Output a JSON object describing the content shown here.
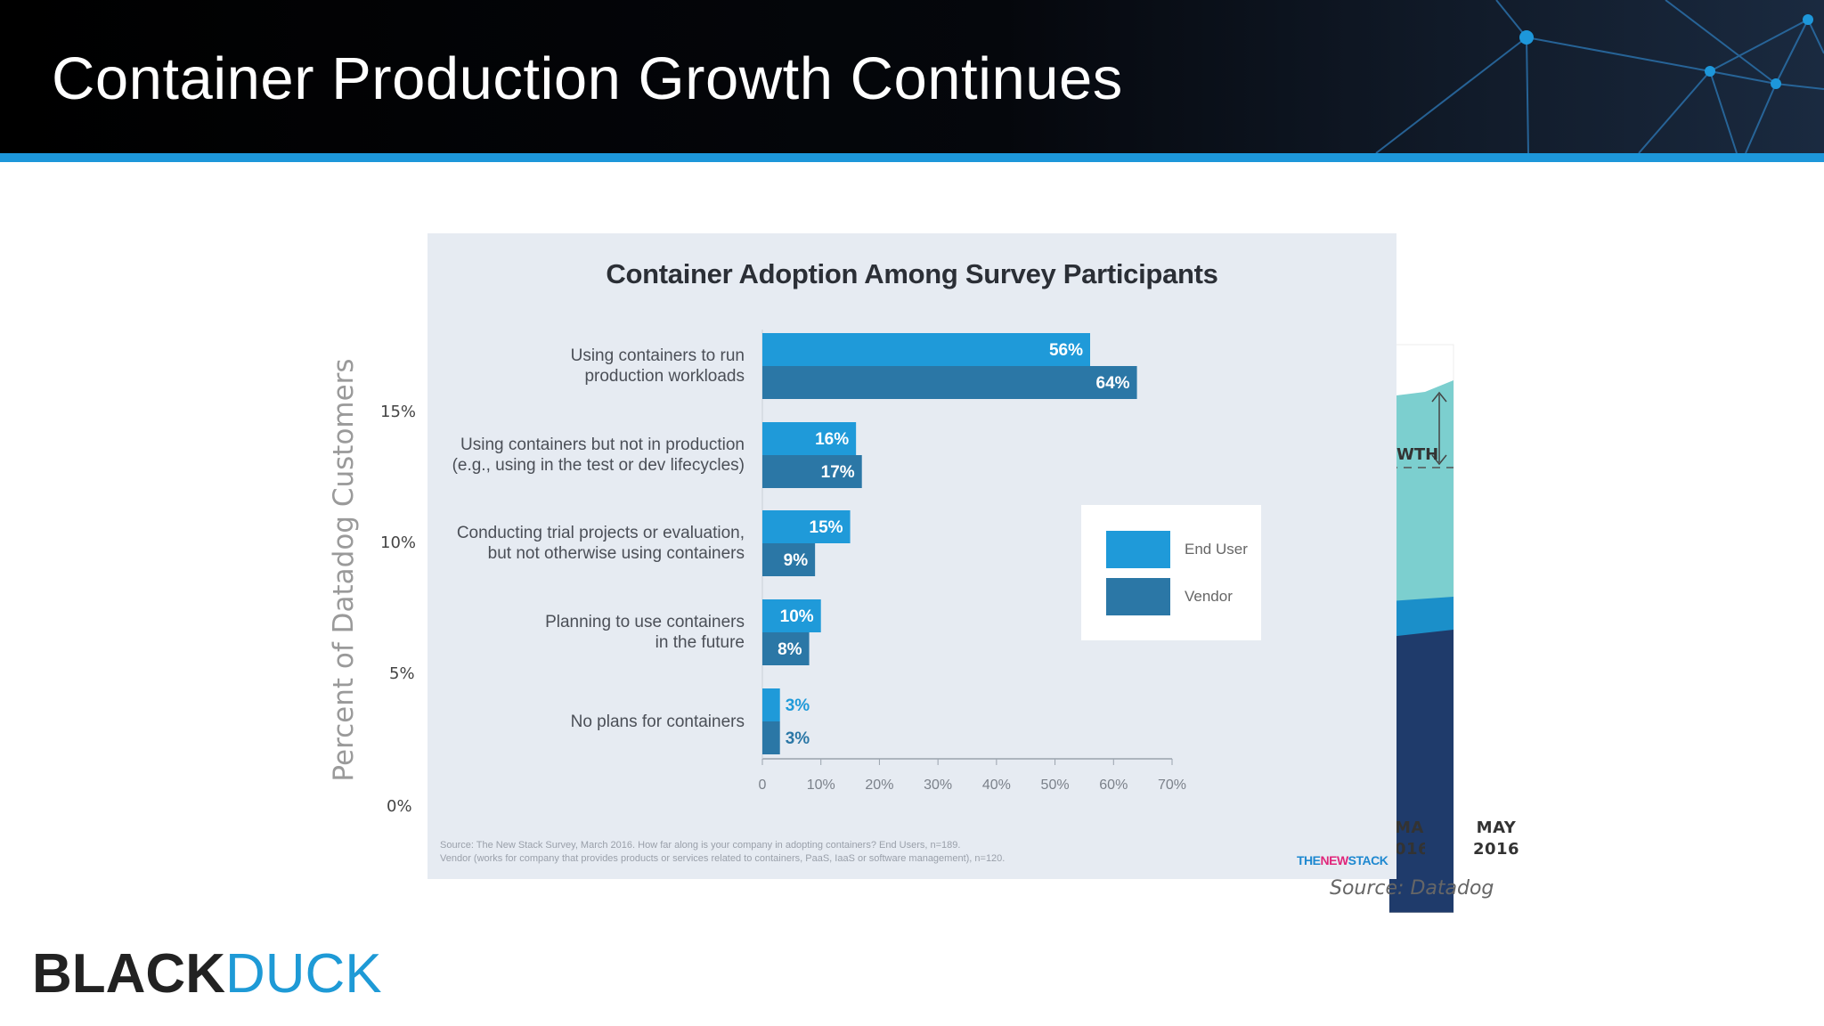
{
  "slide": {
    "title": "Container Production Growth Continues",
    "accent_color": "#1d97da",
    "header_color": "#000000"
  },
  "background_chart": {
    "ylabel": "Percent of Datadog Customers",
    "yticks": [
      "15%",
      "10%",
      "5%",
      "0%"
    ],
    "xticks": [
      {
        "month": "MAR",
        "year": "016"
      },
      {
        "month": "MAY",
        "year": "2016"
      }
    ],
    "annotation": "WTH",
    "source": "Source: Datadog",
    "colors": {
      "light": "#7ccfcf",
      "mid": "#1b8fc9",
      "dark": "#1f3b6b"
    }
  },
  "chart_data": {
    "type": "bar",
    "title": "Container Adoption Among Survey Participants",
    "categories": [
      "Using containers to run\nproduction workloads",
      "Using containers but not in production\n(e.g., using in the test or dev lifecycles)",
      "Conducting trial projects or evaluation,\nbut not otherwise using containers",
      "Planning to use containers\nin the future",
      "No plans for containers"
    ],
    "series": [
      {
        "name": "End User",
        "values": [
          56,
          16,
          15,
          10,
          3
        ],
        "color": "#1f9ad9"
      },
      {
        "name": "Vendor",
        "values": [
          64,
          17,
          9,
          8,
          3
        ],
        "color": "#2b77a6"
      }
    ],
    "xlim": [
      0,
      70
    ],
    "xticks": [
      "0",
      "10%",
      "20%",
      "30%",
      "40%",
      "50%",
      "60%",
      "70%"
    ],
    "orientation": "horizontal",
    "legend": "right",
    "source": "Source: The New Stack Survey, March 2016. How far along is your company in adopting containers? End Users, n=189.\nVendor (works for company that provides products or services related to containers, PaaS, IaaS or software management), n=120.",
    "publisher": {
      "part1": "THE",
      "part2": "NEW",
      "part3": "STACK"
    }
  },
  "brand": {
    "logo_black": "BLACK",
    "logo_color": "DUCK"
  }
}
